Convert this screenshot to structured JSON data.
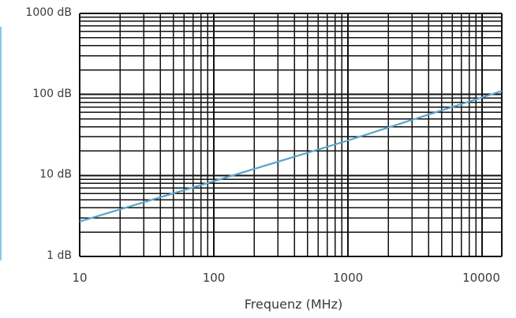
{
  "chart_data": {
    "type": "line",
    "x_scale": "log",
    "y_scale": "log",
    "xlim": [
      10,
      14000
    ],
    "ylim": [
      1,
      1000
    ],
    "x_ticks": [
      "10",
      "100",
      "1000",
      "10000"
    ],
    "y_ticks": [
      "1 dB",
      "10 dB",
      "100 dB",
      "1000 dB"
    ],
    "xlabel": "Frequenz (MHz)",
    "ylabel": "",
    "grid": true,
    "series": [
      {
        "x": [
          10,
          100,
          1000,
          14000
        ],
        "y": [
          2.7,
          8.5,
          27,
          110
        ],
        "color": "#5ba3cf"
      }
    ],
    "colors": {
      "grid": "#111111",
      "axis_text": "#3a3a3a",
      "accent": "#8ec7e8"
    }
  }
}
